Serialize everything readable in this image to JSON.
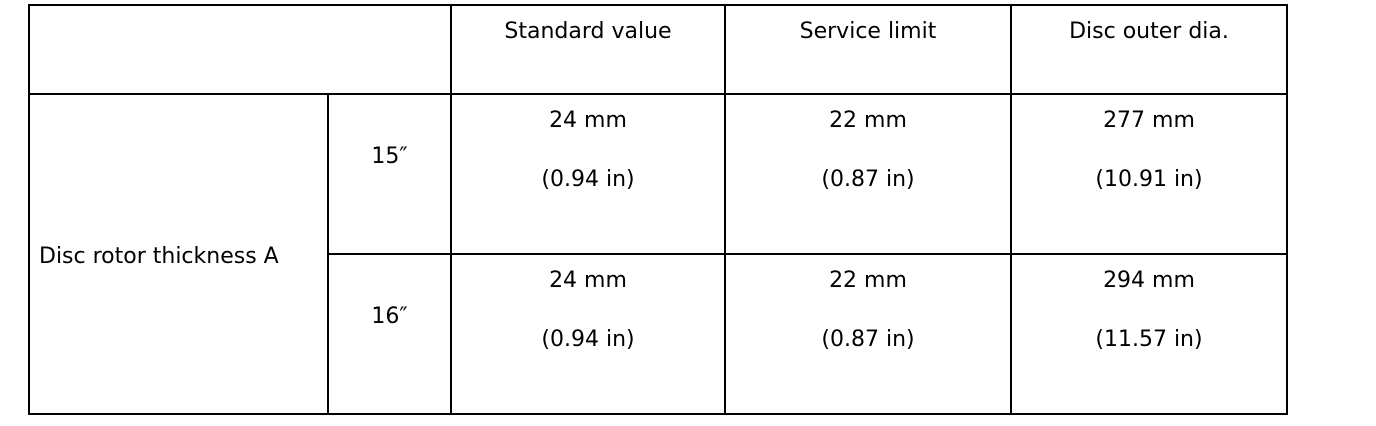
{
  "table": {
    "headers": [
      "",
      "Standard value",
      "Service limit",
      "Disc outer dia."
    ],
    "row_label": "Disc rotor thickness A",
    "rows": [
      {
        "size": "15″",
        "standard": [
          "24 mm",
          "(0.94 in)"
        ],
        "limit": [
          "22 mm",
          "(0.87 in)"
        ],
        "outer": [
          "277 mm",
          "(10.91 in)"
        ]
      },
      {
        "size": "16″",
        "standard": [
          "24 mm",
          "(0.94 in)"
        ],
        "limit": [
          "22 mm",
          "(0.87 in)"
        ],
        "outer": [
          "294 mm",
          "(11.57 in)"
        ]
      }
    ]
  }
}
